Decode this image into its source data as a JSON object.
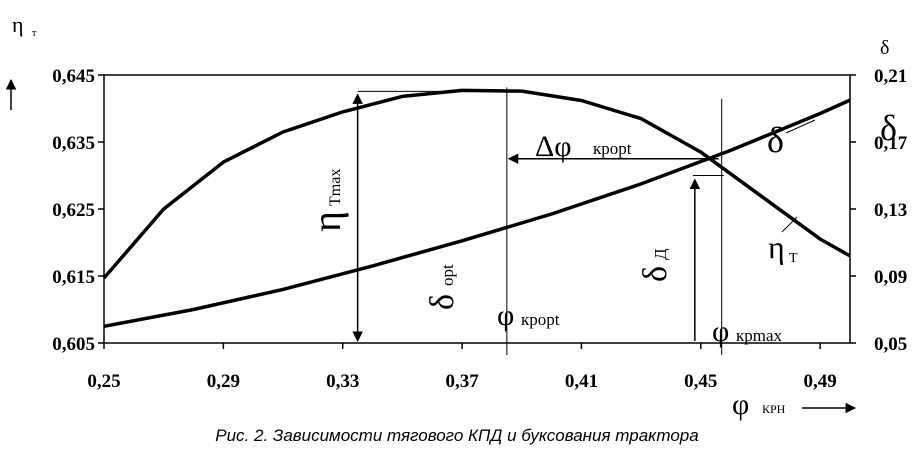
{
  "caption": "Рис. 2. Зависимости тягового КПД и буксования трактора",
  "chart_data": {
    "type": "line",
    "x_label": "φ",
    "x_label_sub": "КРН",
    "y_left_label": "η",
    "y_left_label_sub": "т",
    "y_right_label": "δ",
    "x_range": [
      0.25,
      0.5
    ],
    "y_left_range": [
      0.605,
      0.645
    ],
    "y_right_range": [
      0.05,
      0.21
    ],
    "x_ticks": [
      "0,25",
      "0,29",
      "0,33",
      "0,37",
      "0,41",
      "0,45",
      "0,49"
    ],
    "x_tick_values": [
      0.25,
      0.29,
      0.33,
      0.37,
      0.41,
      0.45,
      0.49
    ],
    "y_left_ticks": [
      "0,645",
      "0,635",
      "0,625",
      "0,615",
      "0,605"
    ],
    "y_left_tick_values": [
      0.645,
      0.635,
      0.625,
      0.615,
      0.605
    ],
    "y_right_ticks": [
      "0,21",
      "0,17",
      "0,13",
      "0,09",
      "0,05"
    ],
    "y_right_tick_values": [
      0.21,
      0.17,
      0.13,
      0.09,
      0.05
    ],
    "series": [
      {
        "name": "ηт",
        "axis": "left",
        "x": [
          0.25,
          0.27,
          0.29,
          0.31,
          0.33,
          0.35,
          0.37,
          0.39,
          0.41,
          0.43,
          0.45,
          0.47,
          0.49,
          0.5
        ],
        "y": [
          0.6147,
          0.625,
          0.632,
          0.6365,
          0.6395,
          0.6418,
          0.6427,
          0.6426,
          0.6412,
          0.6385,
          0.6335,
          0.627,
          0.6205,
          0.618
        ]
      },
      {
        "name": "δ",
        "axis": "right",
        "x": [
          0.25,
          0.28,
          0.31,
          0.34,
          0.37,
          0.4,
          0.43,
          0.46,
          0.49,
          0.5
        ],
        "y": [
          0.06,
          0.07,
          0.082,
          0.096,
          0.111,
          0.127,
          0.145,
          0.165,
          0.187,
          0.195
        ]
      }
    ],
    "annotations": {
      "eta_tmax": {
        "text": "η",
        "sub": "Tmax"
      },
      "delta_opt": {
        "text": "δ",
        "sub": "opt"
      },
      "phi_kropt": {
        "text": "φ",
        "sub": "кpopt"
      },
      "delta_phi": {
        "text": "Δφ",
        "sub": "кpopt"
      },
      "delta_d": {
        "text": "δ",
        "sub": "Д"
      },
      "phi_krmax": {
        "text": "φ",
        "sub": "кpmax"
      },
      "eta_t_label": {
        "text": "η",
        "sub": "T"
      },
      "delta_label": "δ",
      "delta_edge": "δ"
    },
    "ref_x": {
      "phi_kropt": 0.385,
      "phi_krmax": 0.457,
      "eta_tmax_x": 0.335,
      "delta_d_x": 0.448
    },
    "ref_y": {
      "eta_max": 0.6427,
      "delta_d_top": 0.15
    },
    "grid": false,
    "legend": "none"
  }
}
